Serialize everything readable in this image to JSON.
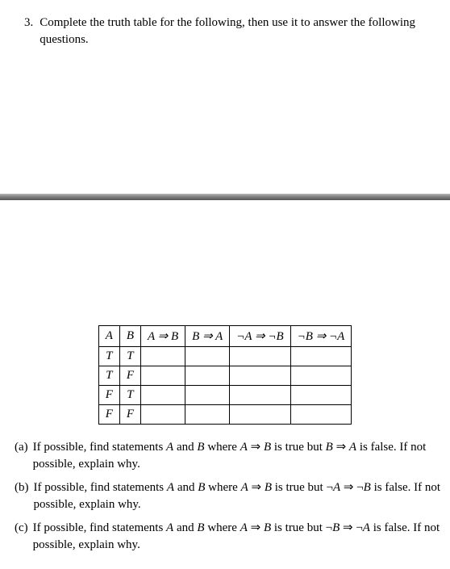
{
  "problem": {
    "number": "3.",
    "text": "Complete the truth table for the following, then use it to answer the following questions."
  },
  "table": {
    "headers": [
      "A",
      "B",
      "A ⇒ B",
      "B ⇒ A",
      "¬A ⇒ ¬B",
      "¬B ⇒ ¬A"
    ],
    "rows": [
      [
        "T",
        "T",
        "",
        "",
        "",
        ""
      ],
      [
        "T",
        "F",
        "",
        "",
        "",
        ""
      ],
      [
        "F",
        "T",
        "",
        "",
        "",
        ""
      ],
      [
        "F",
        "F",
        "",
        "",
        "",
        ""
      ]
    ]
  },
  "subparts": [
    {
      "label": "(a)",
      "text": "If possible, find statements A and B where A ⇒ B is true but B ⇒ A is false. If not possible, explain why."
    },
    {
      "label": "(b)",
      "text": "If possible, find statements A and B where A ⇒ B is true but ¬A ⇒ ¬B is false. If not possible, explain why."
    },
    {
      "label": "(c)",
      "text": "If possible, find statements A and B where A ⇒ B is true but ¬B ⇒ ¬A is false. If not possible, explain why."
    }
  ]
}
